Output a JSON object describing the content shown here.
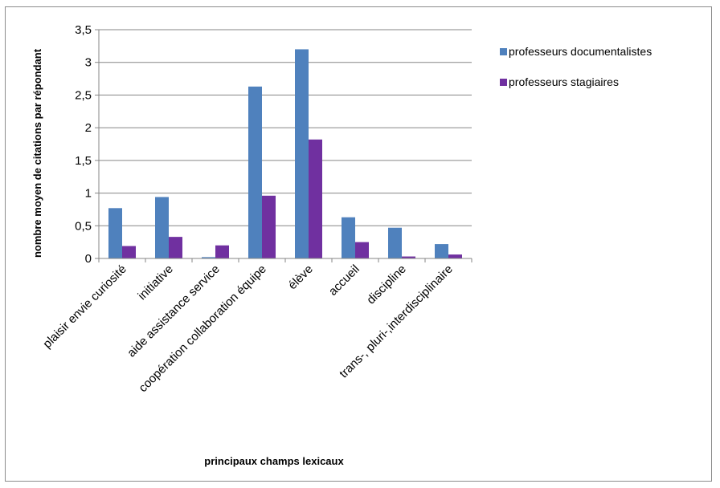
{
  "chart_data": {
    "type": "bar",
    "categories": [
      "plaisir envie curiosité",
      "initiative",
      "aide assistance service",
      "coopération collaboration équipe",
      "élève",
      "accueil",
      "discipline",
      "trans-, pluri-,interdisciplinaire"
    ],
    "series": [
      {
        "name": "professeurs documentalistes",
        "color": "#4F81BD",
        "values": [
          0.77,
          0.94,
          0.02,
          2.63,
          3.2,
          0.63,
          0.47,
          0.22
        ]
      },
      {
        "name": "professeurs stagiaires",
        "color": "#7030A0",
        "values": [
          0.19,
          0.33,
          0.2,
          0.96,
          1.82,
          0.25,
          0.03,
          0.06
        ]
      }
    ],
    "xlabel": "principaux champs lexicaux",
    "ylabel": "nombre moyen de citations par répondant",
    "ylim": [
      0,
      3.5
    ],
    "yticks": [
      0,
      0.5,
      1,
      1.5,
      2,
      2.5,
      3,
      3.5
    ],
    "ytick_labels": [
      "0",
      "0,5",
      "1",
      "1,5",
      "2",
      "2,5",
      "3",
      "3,5"
    ],
    "grid": true,
    "legend": "right"
  }
}
